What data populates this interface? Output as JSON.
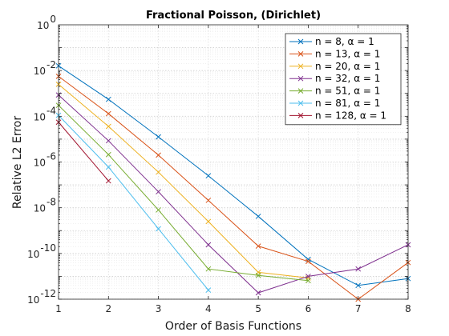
{
  "chart_data": {
    "type": "line",
    "title": "Fractional Poisson, (Dirichlet)",
    "xlabel": "Order of Basis Functions",
    "ylabel": "Relative L2 Error",
    "xlim": [
      1,
      8
    ],
    "ylim_log10": [
      -12,
      0
    ],
    "y_scale": "log",
    "grid": "major and minor",
    "legend_position": "top-right",
    "x_ticks": [
      "1",
      "2",
      "3",
      "4",
      "5",
      "6",
      "7",
      "8"
    ],
    "y_ticks": [
      {
        "base": "10",
        "exp": "0"
      },
      {
        "base": "10",
        "exp": "-2"
      },
      {
        "base": "10",
        "exp": "-4"
      },
      {
        "base": "10",
        "exp": "-6"
      },
      {
        "base": "10",
        "exp": "-8"
      },
      {
        "base": "10",
        "exp": "-10"
      },
      {
        "base": "10",
        "exp": "-12"
      }
    ],
    "series": [
      {
        "name": "n = 8, α = 1",
        "color": "#0072BD",
        "x": [
          1,
          2,
          3,
          4,
          5,
          6,
          7,
          8
        ],
        "y": [
          0.016,
          0.00055,
          1.25e-05,
          2.5e-07,
          4.2e-09,
          5.5e-11,
          4e-12,
          8e-12
        ]
      },
      {
        "name": "n = 13, α = 1",
        "color": "#D95319",
        "x": [
          1,
          2,
          3,
          4,
          5,
          6,
          7,
          8
        ],
        "y": [
          0.0056,
          0.00013,
          2e-06,
          2.1e-08,
          2.1e-10,
          4.5e-11,
          1e-12,
          4e-11
        ]
      },
      {
        "name": "n = 20, α = 1",
        "color": "#EDB120",
        "x": [
          1,
          2,
          3,
          4,
          5,
          6
        ],
        "y": [
          0.0025,
          3.6e-05,
          3.6e-07,
          2.5e-09,
          1.5e-11,
          8.5e-12
        ]
      },
      {
        "name": "n = 32, α = 1",
        "color": "#7E2F8E",
        "x": [
          1,
          2,
          3,
          4,
          5,
          6,
          7,
          8
        ],
        "y": [
          0.00085,
          8.5e-06,
          5e-08,
          2.4e-10,
          1.9e-12,
          1e-11,
          2.1e-11,
          2.4e-10
        ]
      },
      {
        "name": "n = 51, α = 1",
        "color": "#77AC30",
        "x": [
          1,
          2,
          3,
          4,
          5,
          6
        ],
        "y": [
          0.0003,
          2.1e-06,
          8e-09,
          2.1e-11,
          1.1e-11,
          6.5e-12
        ]
      },
      {
        "name": "n = 81, α = 1",
        "color": "#4DBEEE",
        "x": [
          1,
          2,
          3,
          4
        ],
        "y": [
          0.00011,
          6e-07,
          1.2e-09,
          2.5e-12
        ]
      },
      {
        "name": "n = 128, α = 1",
        "color": "#A2142F",
        "x": [
          1,
          2
        ],
        "y": [
          5.5e-05,
          1.5e-07
        ]
      }
    ]
  }
}
